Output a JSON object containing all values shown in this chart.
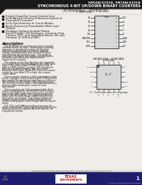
{
  "title_line1": "SN54ALS191A, SN74ALS191A",
  "title_line2": "SYNCHRONOUS 4-BIT UP/DOWN BINARY COUNTERS",
  "page_bg": "#f0ede8",
  "header_bar_color": "#1a1a1a",
  "text_color": "#111111",
  "bullet_points": [
    "Single Down/Up Count-Control Line",
    "Look-Ahead Circuitry Enhances Speed of\nCascaded Counters",
    "Fully Synchronous in Count Modes",
    "Asynchronously Presettable With Load\nControl",
    "Package Options Include Plastic\nSmall-Outline (D) Packages, Ceramic Chip\nCarriers (FK), and Standard Plastic (N) and\nCeramic (J) 300-mil DIPs"
  ],
  "desc_title": "description",
  "desc_lines": [
    "   The ALS191A are synchronous 4-bit reversible",
    "up/down binary counters. Synchronous counting",
    "operation is provided by having all flip-flops",
    "clocked simultaneously so that the outputs",
    "change simultaneously with each other when",
    "instructed by the steering logic. This mode of",
    "operation eliminates the output counting spikes",
    "normally associated with asynchronous",
    "(ripple-clock) counters.",
    "",
    "   The outputs of the four flip-flops are triggered",
    "on a low-to-high-level transition of the clock (CLK)",
    "input if the count enable (CTEN) input is low. If",
    "high at CTEN enables counting. The direction of",
    "the count is determined by the level of the",
    "down/up (D/U) input. When D/U is low the counter",
    "counts up, and when D/U is high, the counter",
    "counts down.",
    "",
    "   These counters feature a fully independent clock",
    "circuit. Changes of the control inputs CTEN and D/U",
    "that modify the operating mode have no effect on",
    "the contents of the counter until clocking occurs.",
    "The function of each input is illustrated below by a",
    "function table showing the states of each",
    "input/output.",
    "",
    "   These counters are fully programmable. Each",
    "output independently can four-bit level driving a",
    "low on the LOAD input and entering the desired",
    "data of the data inputs. The output changes to",
    "agree with the data inputs independently of the",
    "level of the clock input. This feature allows the",
    "counters to be used as module initializers by",
    "simply modifying the count length with the preset",
    "inputs.",
    "",
    "   CLK, D/U, and LOAD are buffered to lower the",
    "driver requirement, which significantly reduces the",
    "loading on current required by clock drivers, for",
    "long parallel words."
  ],
  "pkg1_left_labels": [
    "QA",
    "QB",
    "QC",
    "QD",
    "CLK",
    "MAX/MIN",
    "RCO",
    "CTEN"
  ],
  "pkg1_right_labels": [
    "D/U",
    "A",
    "B",
    "C",
    "D",
    "LOAD",
    "GND",
    "VCC"
  ],
  "pkg1_left_nums": [
    "1",
    "2",
    "3",
    "4",
    "5",
    "6",
    "7",
    "8"
  ],
  "pkg1_right_nums": [
    "16",
    "15",
    "14",
    "13",
    "12",
    "11",
    "10",
    "9"
  ],
  "pkg2_top_labels": [
    "NC",
    "D/U",
    "NC",
    "A",
    "B"
  ],
  "pkg2_right_labels": [
    "C",
    "D",
    "NC",
    "LOAD",
    "GND"
  ],
  "pkg2_bottom_labels": [
    "VCC",
    "NC",
    "CLK",
    "NC",
    "CTEN"
  ],
  "pkg2_left_labels": [
    "MAX/MIN",
    "RCO",
    "NC",
    "QD",
    "QC"
  ],
  "pkg2_corner_labels": [
    "QB",
    "QA"
  ],
  "ti_logo_color": "#cc0000",
  "footer_bg": "#1e1e6e",
  "footer_text": "#ffffff",
  "warn_color": "#e8a000",
  "sep_line_color": "#888888"
}
